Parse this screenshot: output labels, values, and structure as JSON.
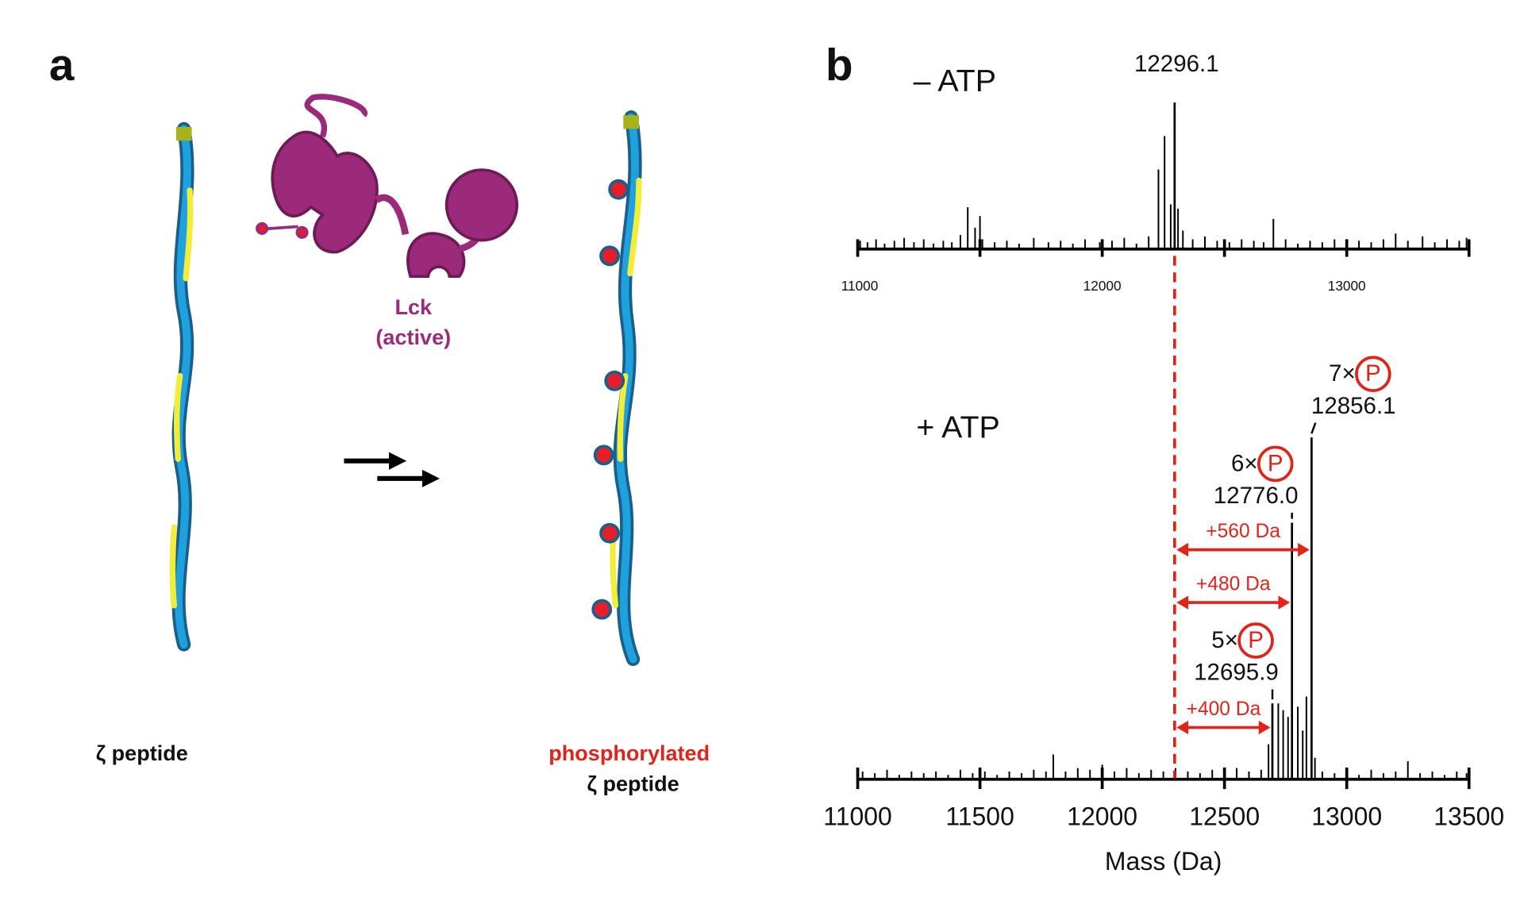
{
  "panel_a": {
    "label": "a",
    "enzyme": [
      "Lck",
      "(active)"
    ],
    "substrate": "ζ peptide",
    "product": [
      "phosphorylated",
      "ζ peptide"
    ]
  },
  "panel_b": {
    "label": "b"
  },
  "chart_data": [
    {
      "type": "stem",
      "title": "– ATP",
      "color": "#000000",
      "xlim": [
        11000,
        13500
      ],
      "xticks": [
        11000,
        12000,
        13000
      ],
      "minor_xticks": [
        11500,
        12500,
        13500
      ],
      "peaks": [
        {
          "x": 12296.1,
          "label": "12296.1",
          "value": 100
        }
      ],
      "x": [
        11010,
        11040,
        11075,
        11110,
        11150,
        11190,
        11230,
        11270,
        11310,
        11350,
        11385,
        11420,
        11450,
        11480,
        11500,
        11510,
        11560,
        11610,
        11660,
        11720,
        11780,
        11830,
        11880,
        11930,
        11990,
        12040,
        12090,
        12140,
        12190,
        12230,
        12255,
        12280,
        12310,
        12330,
        12370,
        12420,
        12470,
        12520,
        12570,
        12620,
        12660,
        12700,
        12750,
        12800,
        12850,
        12900,
        12950,
        13000,
        13050,
        13100,
        13150,
        13200,
        13250,
        13310,
        13360,
        13410,
        13460,
        13490
      ],
      "values": [
        5,
        4,
        6,
        3,
        5,
        7,
        4,
        6,
        3,
        5,
        4,
        9,
        28,
        14,
        22,
        6,
        4,
        5,
        3,
        7,
        4,
        5,
        3,
        6,
        4,
        5,
        7,
        3,
        8,
        54,
        77,
        30,
        27,
        12,
        6,
        8,
        5,
        4,
        6,
        5,
        4,
        20,
        6,
        3,
        5,
        4,
        6,
        3,
        5,
        4,
        6,
        10,
        5,
        8,
        4,
        6,
        5,
        7
      ]
    },
    {
      "type": "stem",
      "title": "+ ATP",
      "color": "#000000",
      "xlim": [
        11000,
        13500
      ],
      "xticks": [
        11000,
        11500,
        12000,
        12500,
        13000,
        13500
      ],
      "xlabel": "Mass (Da)",
      "peaks": [
        {
          "x": 12856.1,
          "label": "12856.1",
          "value": 100,
          "count": "7×",
          "symbol": "P",
          "shift": "+560 Da"
        },
        {
          "x": 12776.0,
          "label": "12776.0",
          "value": 75,
          "count": "6×",
          "symbol": "P",
          "shift": "+480 Da"
        },
        {
          "x": 12695.9,
          "label": "12695.9",
          "value": 22,
          "count": "5×",
          "symbol": "P",
          "shift": "+400 Da"
        }
      ],
      "x": [
        11020,
        11070,
        11120,
        11170,
        11220,
        11270,
        11320,
        11370,
        11420,
        11470,
        11520,
        11570,
        11620,
        11670,
        11720,
        11770,
        11800,
        11850,
        11900,
        11950,
        12000,
        12050,
        12100,
        12150,
        12200,
        12250,
        12300,
        12350,
        12400,
        12450,
        12500,
        12550,
        12600,
        12650,
        12680,
        12720,
        12740,
        12760,
        12800,
        12820,
        12835,
        12870,
        12900,
        12950,
        13000,
        13050,
        13100,
        13150,
        13200,
        13250,
        13300,
        13350,
        13400,
        13450,
        13490
      ],
      "values": [
        2,
        1.5,
        2.5,
        1,
        2,
        1.5,
        2,
        1,
        2.5,
        1.5,
        2,
        1,
        2,
        1.5,
        2.5,
        2,
        7,
        2,
        3,
        2.5,
        4,
        2,
        3,
        1.5,
        2.5,
        2,
        3,
        2,
        1.5,
        2.5,
        2,
        3,
        2,
        2.5,
        10,
        22,
        20,
        18,
        21,
        14,
        24,
        6,
        2,
        1.5,
        2,
        1,
        2.5,
        1.5,
        2,
        5,
        1.5,
        2,
        1,
        2,
        1.5
      ]
    }
  ]
}
